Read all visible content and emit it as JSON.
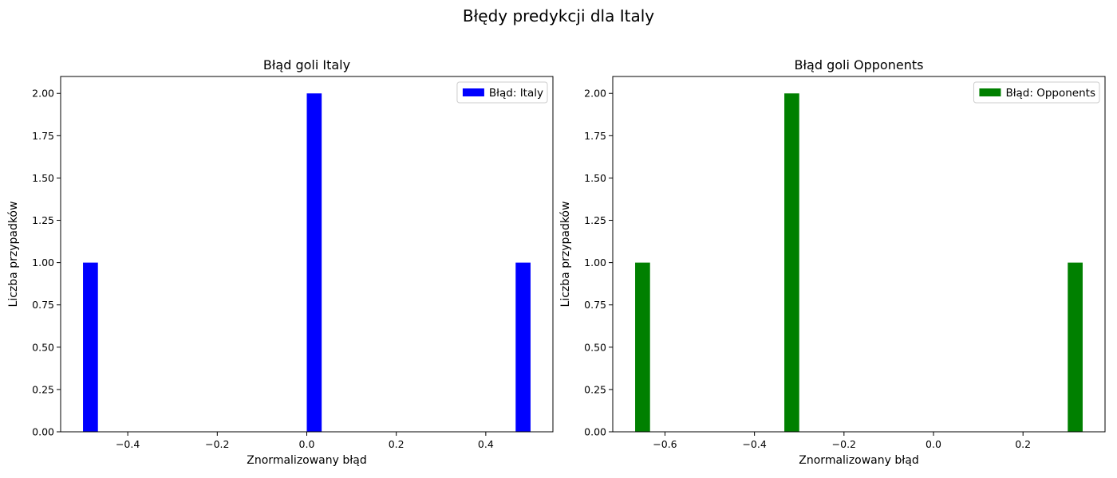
{
  "figure": {
    "title": "Błędy predykcji dla Italy"
  },
  "chart_data": [
    {
      "type": "bar",
      "title": "Błąd goli Italy",
      "xlabel": "Znormalizowany błąd",
      "ylabel": "Liczba przypadków",
      "xlim": [
        -0.55,
        0.55
      ],
      "ylim": [
        0,
        2.1
      ],
      "xticks": [
        -0.4,
        -0.2,
        0.0,
        0.2,
        0.4
      ],
      "xtick_labels": [
        "−0.4",
        "−0.2",
        "0.0",
        "0.2",
        "0.4"
      ],
      "yticks": [
        0,
        0.25,
        0.5,
        0.75,
        1.0,
        1.25,
        1.5,
        1.75,
        2.0
      ],
      "ytick_labels": [
        "0.00",
        "0.25",
        "0.50",
        "0.75",
        "1.00",
        "1.25",
        "1.50",
        "1.75",
        "2.00"
      ],
      "bin_width": 0.0333,
      "bars": [
        {
          "x": -0.5,
          "value": 1
        },
        {
          "x": 0.0,
          "value": 2
        },
        {
          "x": 0.4667,
          "value": 1
        }
      ],
      "color": "#0000ff",
      "legend": {
        "label": "Błąd: Italy",
        "placement": "top-right"
      },
      "grid": false
    },
    {
      "type": "bar",
      "title": "Błąd goli Opponents",
      "xlabel": "Znormalizowany błąd",
      "ylabel": "Liczba przypadków",
      "xlim": [
        -0.7167,
        0.3833
      ],
      "ylim": [
        0,
        2.1
      ],
      "xticks": [
        -0.6,
        -0.4,
        -0.2,
        0.0,
        0.2
      ],
      "xtick_labels": [
        "−0.6",
        "−0.4",
        "−0.2",
        "0.0",
        "0.2"
      ],
      "yticks": [
        0,
        0.25,
        0.5,
        0.75,
        1.0,
        1.25,
        1.5,
        1.75,
        2.0
      ],
      "ytick_labels": [
        "0.00",
        "0.25",
        "0.50",
        "0.75",
        "1.00",
        "1.25",
        "1.50",
        "1.75",
        "2.00"
      ],
      "bin_width": 0.0333,
      "bars": [
        {
          "x": -0.6667,
          "value": 1
        },
        {
          "x": -0.3333,
          "value": 2
        },
        {
          "x": 0.3,
          "value": 1
        }
      ],
      "color": "#008000",
      "legend": {
        "label": "Błąd: Opponents",
        "placement": "top-right"
      },
      "grid": false
    }
  ]
}
